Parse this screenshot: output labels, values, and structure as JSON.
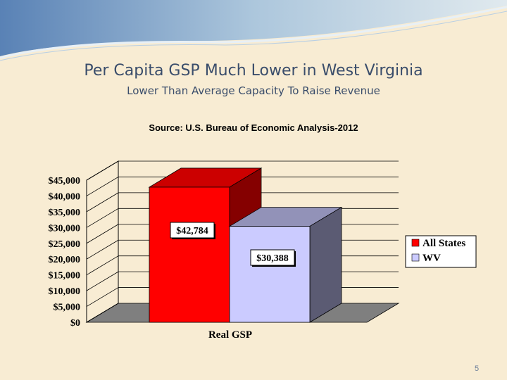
{
  "slide": {
    "title": "Per Capita GSP Much Lower in West Virginia",
    "subtitle": "Lower Than Average Capacity To Raise Revenue",
    "page_number": "5"
  },
  "chart_data": {
    "type": "bar",
    "source_note": "Source: U.S. Bureau of Economic Analysis-2012",
    "categories": [
      "Real GSP"
    ],
    "xlabel": "Real GSP",
    "ylabel": "",
    "ylim": [
      0,
      45000
    ],
    "yticks": [
      "$0",
      "$5,000",
      "$10,000",
      "$15,000",
      "$20,000",
      "$25,000",
      "$30,000",
      "$35,000",
      "$40,000",
      "$45,000"
    ],
    "grid": true,
    "legend_position": "right",
    "series": [
      {
        "name": "All States",
        "values": [
          42784
        ],
        "data_label": "$42,784",
        "color": "#ff0000"
      },
      {
        "name": "WV",
        "values": [
          30388
        ],
        "data_label": "$30,388",
        "color": "#cbcbff"
      }
    ]
  }
}
